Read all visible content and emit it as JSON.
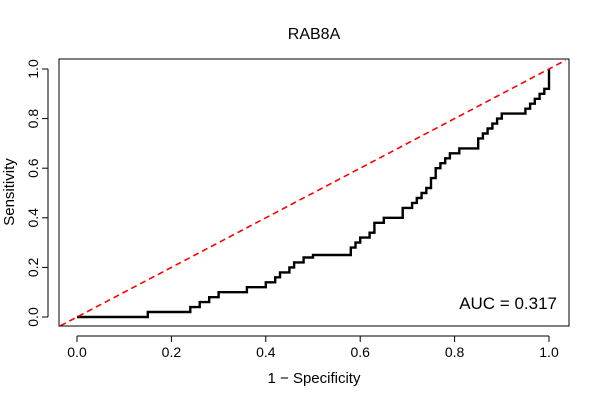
{
  "chart_data": {
    "type": "line",
    "title": "RAB8A",
    "xlabel": "1 − Specificity",
    "ylabel": "Sensitivity",
    "xlim": [
      0,
      1
    ],
    "ylim": [
      0,
      1
    ],
    "xticks": [
      "0.0",
      "0.2",
      "0.4",
      "0.6",
      "0.8",
      "1.0"
    ],
    "yticks": [
      "0.0",
      "0.2",
      "0.4",
      "0.6",
      "0.8",
      "1.0"
    ],
    "grid": false,
    "annotation": "AUC = 0.317",
    "series": [
      {
        "role": "roc",
        "color": "#000000",
        "style": "step",
        "points": [
          [
            0.0,
            0.0
          ],
          [
            0.15,
            0.0
          ],
          [
            0.15,
            0.02
          ],
          [
            0.24,
            0.02
          ],
          [
            0.24,
            0.04
          ],
          [
            0.26,
            0.04
          ],
          [
            0.26,
            0.06
          ],
          [
            0.28,
            0.06
          ],
          [
            0.28,
            0.08
          ],
          [
            0.3,
            0.08
          ],
          [
            0.3,
            0.1
          ],
          [
            0.36,
            0.1
          ],
          [
            0.36,
            0.12
          ],
          [
            0.4,
            0.12
          ],
          [
            0.4,
            0.14
          ],
          [
            0.42,
            0.14
          ],
          [
            0.42,
            0.16
          ],
          [
            0.43,
            0.16
          ],
          [
            0.43,
            0.18
          ],
          [
            0.45,
            0.18
          ],
          [
            0.45,
            0.2
          ],
          [
            0.46,
            0.2
          ],
          [
            0.46,
            0.22
          ],
          [
            0.48,
            0.22
          ],
          [
            0.48,
            0.24
          ],
          [
            0.5,
            0.24
          ],
          [
            0.5,
            0.25
          ],
          [
            0.58,
            0.25
          ],
          [
            0.58,
            0.28
          ],
          [
            0.59,
            0.28
          ],
          [
            0.59,
            0.3
          ],
          [
            0.6,
            0.3
          ],
          [
            0.6,
            0.32
          ],
          [
            0.62,
            0.32
          ],
          [
            0.62,
            0.34
          ],
          [
            0.63,
            0.34
          ],
          [
            0.63,
            0.38
          ],
          [
            0.65,
            0.38
          ],
          [
            0.65,
            0.4
          ],
          [
            0.69,
            0.4
          ],
          [
            0.69,
            0.44
          ],
          [
            0.71,
            0.44
          ],
          [
            0.71,
            0.46
          ],
          [
            0.72,
            0.46
          ],
          [
            0.72,
            0.48
          ],
          [
            0.73,
            0.48
          ],
          [
            0.73,
            0.5
          ],
          [
            0.74,
            0.5
          ],
          [
            0.74,
            0.52
          ],
          [
            0.75,
            0.52
          ],
          [
            0.75,
            0.56
          ],
          [
            0.76,
            0.56
          ],
          [
            0.76,
            0.6
          ],
          [
            0.77,
            0.6
          ],
          [
            0.77,
            0.62
          ],
          [
            0.78,
            0.62
          ],
          [
            0.78,
            0.64
          ],
          [
            0.79,
            0.64
          ],
          [
            0.79,
            0.66
          ],
          [
            0.81,
            0.66
          ],
          [
            0.81,
            0.68
          ],
          [
            0.85,
            0.68
          ],
          [
            0.85,
            0.72
          ],
          [
            0.86,
            0.72
          ],
          [
            0.86,
            0.74
          ],
          [
            0.87,
            0.74
          ],
          [
            0.87,
            0.76
          ],
          [
            0.88,
            0.76
          ],
          [
            0.88,
            0.78
          ],
          [
            0.89,
            0.78
          ],
          [
            0.89,
            0.8
          ],
          [
            0.9,
            0.8
          ],
          [
            0.9,
            0.82
          ],
          [
            0.95,
            0.82
          ],
          [
            0.95,
            0.84
          ],
          [
            0.96,
            0.84
          ],
          [
            0.96,
            0.86
          ],
          [
            0.97,
            0.86
          ],
          [
            0.97,
            0.88
          ],
          [
            0.98,
            0.88
          ],
          [
            0.98,
            0.9
          ],
          [
            0.99,
            0.9
          ],
          [
            0.99,
            0.92
          ],
          [
            1.0,
            0.92
          ],
          [
            1.0,
            0.94
          ],
          [
            1.0,
            0.96
          ],
          [
            1.0,
            1.0
          ]
        ]
      },
      {
        "role": "reference",
        "color": "#ff0000",
        "style": "dashed",
        "points": [
          [
            -0.035,
            -0.035
          ],
          [
            1.035,
            1.035
          ]
        ]
      }
    ]
  }
}
